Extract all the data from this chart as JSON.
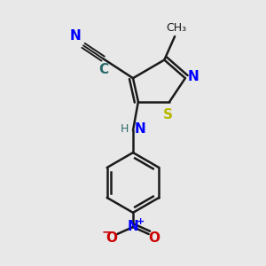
{
  "background_color": "#e8e8e8",
  "bond_color": "#1a1a1a",
  "n_color": "#0000ff",
  "s_color": "#b8b800",
  "o_color": "#cc0000",
  "c_color": "#2a6a6a",
  "figsize": [
    3.0,
    3.0
  ],
  "dpi": 100,
  "xlim": [
    0,
    10
  ],
  "ylim": [
    0,
    10
  ]
}
